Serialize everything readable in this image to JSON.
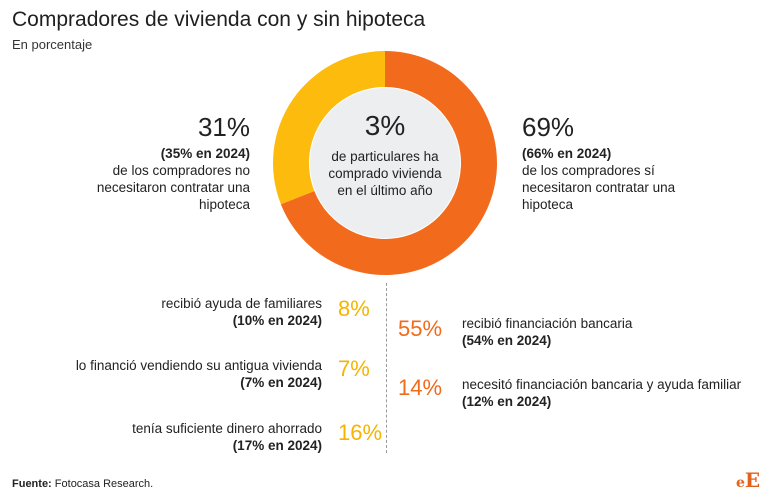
{
  "header": {
    "title": "Compradores de vivienda con y sin hipoteca",
    "subtitle": "En porcentaje"
  },
  "chart_data": {
    "type": "pie",
    "categories": [
      "sí necesitaron contratar una hipoteca",
      "no necesitaron contratar una hipoteca"
    ],
    "values": [
      69,
      31
    ],
    "colors": [
      "#F26A1B",
      "#FDBB0E"
    ],
    "center_color": "#EDEEEF"
  },
  "center": {
    "pct": "3%",
    "text": "de particulares ha comprado vivienda en el último año"
  },
  "left": {
    "pct": "31%",
    "year": "(35% en 2024)",
    "text": "de los compradores no necesitaron contratar una hipoteca"
  },
  "right": {
    "pct": "69%",
    "year": "(66% en 2024)",
    "text": "de los compradores sí necesitaron contratar una hipoteca"
  },
  "left_details": [
    {
      "label": "recibió ayuda de familiares",
      "year": "(10% en 2024)",
      "pct": "8%"
    },
    {
      "label": "lo financió vendiendo su antigua vivienda",
      "year": "(7% en 2024)",
      "pct": "7%"
    },
    {
      "label": "tenía suficiente dinero ahorrado",
      "year": "(17% en 2024)",
      "pct": "16%"
    }
  ],
  "right_details": [
    {
      "pct": "55%",
      "label": "recibió financiación bancaria",
      "year": "(54% en 2024)"
    },
    {
      "pct": "14%",
      "label": "necesitó financiación bancaria y ayuda familiar",
      "year": "(12% en 2024)"
    }
  ],
  "footer": {
    "source_label": "Fuente:",
    "source_text": "Fotocasa Research.",
    "logo_e": "e",
    "logo_E": "E"
  }
}
